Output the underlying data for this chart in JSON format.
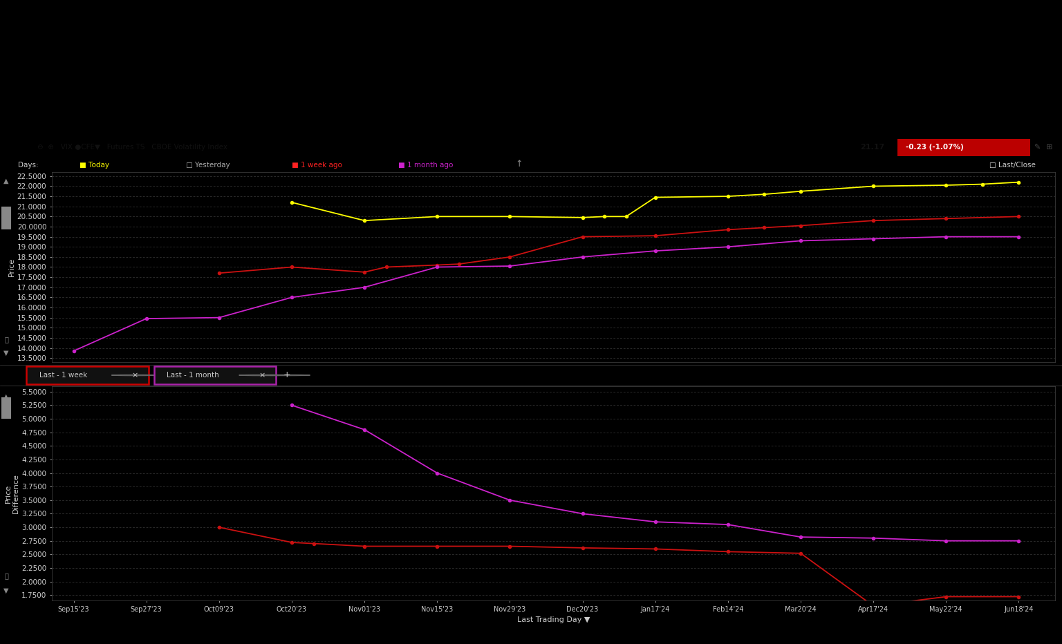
{
  "x_labels": [
    "Sep15'23",
    "Sep27'23",
    "Oct09'23",
    "Oct20'23",
    "Nov01'23",
    "Nov15'23",
    "Nov29'23",
    "Dec20'23",
    "Jan17'24",
    "Feb14'24",
    "Mar20'24",
    "Apr17'24",
    "May22'24",
    "Jun18'24"
  ],
  "x_positions": [
    0,
    1,
    2,
    3,
    4,
    5,
    6,
    7,
    8,
    9,
    10,
    11,
    12,
    13
  ],
  "top_chart": {
    "ylabel": "Price",
    "yticks": [
      13.5,
      14.0,
      14.5,
      15.0,
      15.5,
      16.0,
      16.5,
      17.0,
      17.5,
      18.0,
      18.5,
      19.0,
      19.5,
      20.0,
      20.5,
      21.0,
      21.5,
      22.0,
      22.5
    ],
    "ylim": [
      13.3,
      22.7
    ],
    "yellow": {
      "color": "#ffff00",
      "x": [
        3,
        4,
        5,
        6,
        7,
        7.3,
        7.6,
        8,
        9,
        9.5,
        10,
        11,
        12,
        12.5,
        13
      ],
      "y": [
        21.2,
        20.3,
        20.5,
        20.5,
        20.45,
        20.5,
        20.5,
        21.45,
        21.5,
        21.6,
        21.75,
        22.0,
        22.05,
        22.1,
        22.2
      ]
    },
    "red": {
      "color": "#cc1111",
      "x": [
        2,
        3,
        4,
        4.3,
        5,
        5.3,
        6,
        7,
        8,
        9,
        9.5,
        10,
        11,
        12,
        13
      ],
      "y": [
        17.7,
        18.0,
        17.75,
        18.0,
        18.1,
        18.15,
        18.5,
        19.5,
        19.55,
        19.85,
        19.95,
        20.05,
        20.3,
        20.4,
        20.5
      ]
    },
    "magenta": {
      "color": "#cc22cc",
      "x": [
        0,
        1,
        2,
        3,
        4,
        5,
        6,
        7,
        8,
        9,
        10,
        11,
        12,
        13
      ],
      "y": [
        13.85,
        15.45,
        15.5,
        16.5,
        17.0,
        18.0,
        18.05,
        18.5,
        18.8,
        19.0,
        19.3,
        19.4,
        19.5,
        19.5
      ]
    }
  },
  "bottom_chart": {
    "ylabel": "Price\nDifference",
    "yticks": [
      1.75,
      2.0,
      2.25,
      2.5,
      2.75,
      3.0,
      3.25,
      3.5,
      3.75,
      4.0,
      4.25,
      4.5,
      4.75,
      5.0,
      5.25,
      5.5
    ],
    "ylim": [
      1.65,
      5.6
    ],
    "red": {
      "color": "#cc1111",
      "x": [
        2,
        3,
        3.3,
        4,
        5,
        6,
        7,
        8,
        9,
        10,
        11,
        12,
        13
      ],
      "y": [
        3.0,
        2.72,
        2.7,
        2.65,
        2.65,
        2.65,
        2.62,
        2.6,
        2.55,
        2.52,
        1.55,
        1.72,
        1.72
      ]
    },
    "magenta": {
      "color": "#cc22cc",
      "x": [
        3,
        4,
        5,
        6,
        7,
        8,
        9,
        10,
        11,
        12,
        13
      ],
      "y": [
        5.25,
        4.8,
        4.0,
        3.5,
        3.25,
        3.1,
        3.05,
        2.82,
        2.8,
        2.75,
        2.75
      ]
    }
  },
  "bottom_filters": [
    "Last - 1 week",
    "Last - 1 month"
  ],
  "filter_border_colors": [
    "#cc0000",
    "#aa22aa"
  ],
  "bg_color": "#000000",
  "text_color": "#cccccc",
  "grid_color": "#333333",
  "axis_color": "#555555",
  "scrollbar_color": "#555555"
}
